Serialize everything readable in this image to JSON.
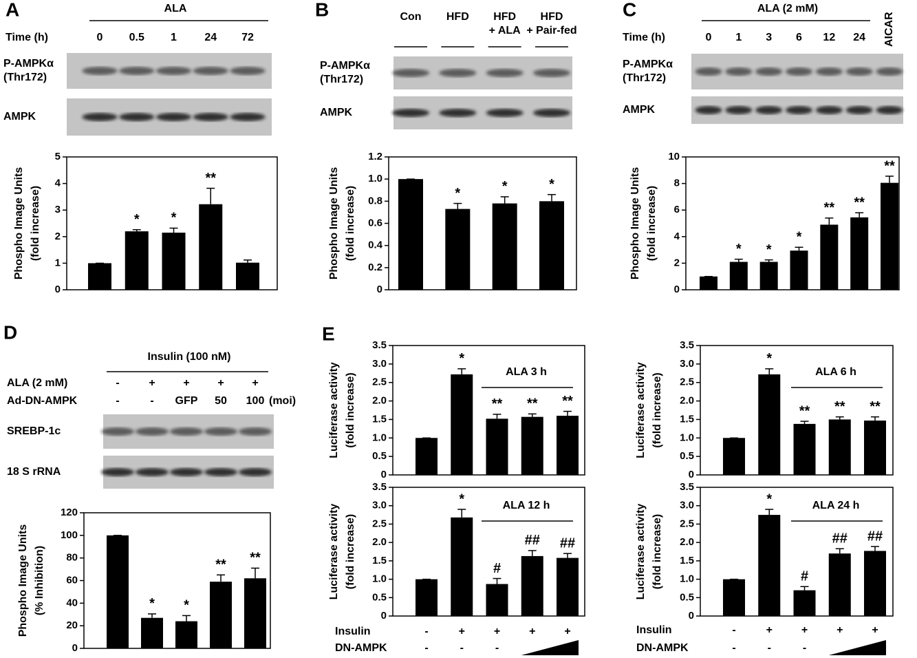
{
  "chart_data": [
    {
      "type": "bar",
      "panel": "A",
      "header": "ALA",
      "row_label": "Time (h)",
      "categories": [
        "0",
        "0.5",
        "1",
        "24",
        "72"
      ],
      "blots": [
        [
          "P-AMPKα",
          "(Thr172)"
        ],
        [
          "AMPK"
        ]
      ],
      "ylabel": [
        "Phospho Image Units",
        "(fold increase)"
      ],
      "values": [
        1,
        2.2,
        2.15,
        3.22,
        1.02
      ],
      "errors": [
        0,
        0.06,
        0.17,
        0.6,
        0.1
      ],
      "annotations": [
        null,
        "*",
        "*",
        "**",
        null
      ],
      "ylim": [
        0,
        5
      ],
      "yticks": [
        0,
        1,
        2,
        3,
        4,
        5
      ],
      "color": "#000000"
    },
    {
      "type": "bar",
      "panel": "B",
      "categories": [
        [
          "Con"
        ],
        [
          "HFD"
        ],
        [
          "HFD",
          "+ ALA"
        ],
        [
          "HFD",
          "+ Pair-fed"
        ]
      ],
      "blots": [
        [
          "P-AMPKα",
          "(Thr172)"
        ],
        [
          "AMPK"
        ]
      ],
      "ylabel": [
        "Phospho Image Units",
        "(fold increase)"
      ],
      "values": [
        1,
        0.73,
        0.78,
        0.8
      ],
      "errors": [
        0,
        0.05,
        0.06,
        0.06
      ],
      "annotations": [
        null,
        "*",
        "*",
        "*"
      ],
      "ylim": [
        0,
        1.2
      ],
      "yticks": [
        0,
        0.2,
        0.4,
        0.6,
        0.8,
        {
          "value": 1,
          "label": "1.0"
        },
        1.2
      ],
      "color": "#000000"
    },
    {
      "type": "bar",
      "panel": "C",
      "header": "ALA (2 mM)",
      "row_label": "Time (h)",
      "categories": [
        "0",
        "1",
        "3",
        "6",
        "12",
        "24",
        "AICAR"
      ],
      "blots": [
        [
          "P-AMPKα",
          "(Thr172)"
        ],
        [
          "AMPK"
        ]
      ],
      "ylabel": [
        "Phospho Image Units",
        "(fold increase)"
      ],
      "values": [
        1,
        2.1,
        2.1,
        2.95,
        4.9,
        5.45,
        8.05
      ],
      "errors": [
        0,
        0.2,
        0.15,
        0.25,
        0.5,
        0.35,
        0.5
      ],
      "annotations": [
        null,
        "*",
        "*",
        "*",
        "**",
        "**",
        "**"
      ],
      "ylim": [
        0,
        10
      ],
      "yticks": [
        0,
        2,
        4,
        6,
        8,
        10
      ],
      "color": "#000000"
    },
    {
      "type": "bar",
      "panel": "D",
      "header": "Insulin (100 nM)",
      "rows": [
        {
          "label": "ALA (2 mM)",
          "signs": [
            "-",
            "+",
            "+",
            "+",
            "+"
          ]
        },
        {
          "label": "Ad-DN-AMPK",
          "signs": [
            "-",
            "-",
            "GFP",
            "50",
            "100"
          ],
          "unit": "(moi)"
        }
      ],
      "blots": [
        [
          "SREBP-1c"
        ],
        [
          "18 S rRNA"
        ]
      ],
      "ylabel": [
        "Phospho Image Units",
        "(% Inhibition)"
      ],
      "values": [
        100,
        27,
        24,
        59,
        62
      ],
      "errors": [
        0,
        3.5,
        5,
        6,
        9
      ],
      "annotations": [
        null,
        "*",
        "*",
        "**",
        "**"
      ],
      "ylim": [
        0,
        120
      ],
      "yticks": [
        0,
        20,
        40,
        60,
        80,
        100,
        120
      ],
      "color": "#000000"
    },
    {
      "type": "bar",
      "panel": "E",
      "inset_label": "ALA 3 h",
      "ylabel": [
        "Luciferase activity",
        "(fold increase)"
      ],
      "values": [
        1,
        2.72,
        1.52,
        1.57,
        1.6
      ],
      "errors": [
        0,
        0.15,
        0.12,
        0.08,
        0.12
      ],
      "annotations": [
        null,
        "*",
        "**",
        "**",
        "**"
      ],
      "ylim": [
        0,
        3.5
      ],
      "yticks": [
        0,
        0.5,
        {
          "value": 1,
          "label": "1.0"
        },
        1.5,
        {
          "value": 2,
          "label": "2.0"
        },
        2.5,
        {
          "value": 3,
          "label": "3.0"
        },
        3.5
      ],
      "color": "#000000"
    },
    {
      "type": "bar",
      "inset_label": "ALA 6 h",
      "ylabel": [
        "Luciferase activity",
        "(fold increase)"
      ],
      "values": [
        1,
        2.72,
        1.38,
        1.5,
        1.47
      ],
      "errors": [
        0,
        0.15,
        0.07,
        0.07,
        0.1
      ],
      "annotations": [
        null,
        "*",
        "**",
        "**",
        "**"
      ],
      "ylim": [
        0,
        3.5
      ],
      "yticks": [
        0,
        0.5,
        {
          "value": 1,
          "label": "1.0"
        },
        1.5,
        {
          "value": 2,
          "label": "2.0"
        },
        2.5,
        {
          "value": 3,
          "label": "3.0"
        },
        3.5
      ],
      "color": "#000000"
    },
    {
      "type": "bar",
      "inset_label": "ALA 12 h",
      "ylabel": [
        "Luciferase activity",
        "(fold increase)"
      ],
      "values": [
        1,
        2.68,
        0.87,
        1.63,
        1.58
      ],
      "errors": [
        0,
        0.22,
        0.15,
        0.15,
        0.12
      ],
      "annotations": [
        null,
        "*",
        "#",
        "##",
        "##"
      ],
      "rows": [
        {
          "label": "Insulin",
          "signs": [
            "-",
            "+",
            "+",
            "+",
            "+"
          ]
        },
        {
          "label": "DN-AMPK",
          "signs": [
            "-",
            "-",
            "-"
          ]
        }
      ],
      "ylim": [
        0,
        3.5
      ],
      "yticks": [
        0,
        0.5,
        {
          "value": 1,
          "label": "1.0"
        },
        1.5,
        {
          "value": 2,
          "label": "2.0"
        },
        2.5,
        {
          "value": 3,
          "label": "3.0"
        },
        3.5
      ],
      "color": "#000000"
    },
    {
      "type": "bar",
      "inset_label": "ALA 24 h",
      "ylabel": [
        "Luciferase activity",
        "(fold increase)"
      ],
      "values": [
        1,
        2.75,
        0.7,
        1.7,
        1.77
      ],
      "errors": [
        0,
        0.15,
        0.1,
        0.13,
        0.12
      ],
      "annotations": [
        null,
        "*",
        "#",
        "##",
        "##"
      ],
      "rows": [
        {
          "label": "Insulin",
          "signs": [
            "-",
            "+",
            "+",
            "+",
            "+"
          ]
        },
        {
          "label": "DN-AMPK",
          "signs": [
            "-",
            "-",
            "-"
          ]
        }
      ],
      "ylim": [
        0,
        3.5
      ],
      "yticks": [
        0,
        0.5,
        {
          "value": 1,
          "label": "1.0"
        },
        1.5,
        {
          "value": 2,
          "label": "2.0"
        },
        2.5,
        {
          "value": 3,
          "label": "3.0"
        },
        3.5
      ],
      "color": "#000000"
    }
  ]
}
